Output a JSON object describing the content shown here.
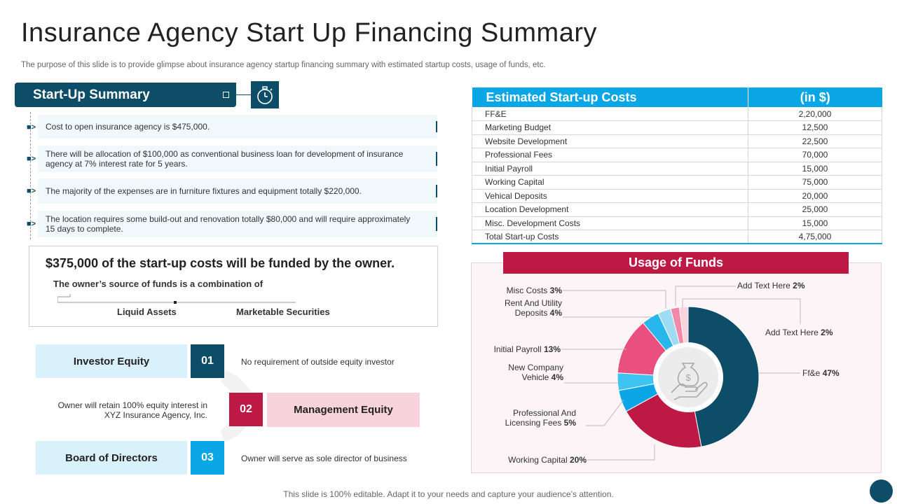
{
  "title": "Insurance Agency Start Up Financing Summary",
  "subtitle": "The purpose of this slide is to provide glimpse about insurance agency startup financing summary with estimated startup costs, usage of funds, etc.",
  "summary": {
    "header": "Start-Up Summary",
    "bullets": [
      "Cost to open insurance agency is $475,000.",
      "There will be allocation of $100,000 as conventional business loan for development of insurance agency at 7% interest rate for 5 years.",
      "The majority of the expenses are in furniture fixtures and equipment totally $220,000.",
      "The location requires some build-out and renovation totally $80,000 and will require approximately 15 days to complete."
    ]
  },
  "funding": {
    "headline": "$375,000 of the start-up costs will be funded by the owner.",
    "sub": "The owner’s source of funds is a combination of",
    "sources": [
      "Liquid Assets",
      "Marketable Securities"
    ]
  },
  "equity": [
    {
      "label": "Investor Equity",
      "num": "01",
      "desc": "No requirement of outside equity investor"
    },
    {
      "label": "Management Equity",
      "num": "02",
      "desc": "Owner will retain 100% equity interest in XYZ  Insurance Agency, Inc."
    },
    {
      "label": "Board of Directors",
      "num": "03",
      "desc": "Owner will serve as sole director of business"
    }
  ],
  "costs": {
    "header_item": "Estimated Start-up Costs",
    "header_amount": "(in $)",
    "rows": [
      {
        "item": "FF&E",
        "amount": "2,20,000"
      },
      {
        "item": "Marketing Budget",
        "amount": "12,500"
      },
      {
        "item": "Website Development",
        "amount": "22,500"
      },
      {
        "item": "Professional Fees",
        "amount": "70,000"
      },
      {
        "item": "Initial Payroll",
        "amount": "15,000"
      },
      {
        "item": "Working Capital",
        "amount": "75,000"
      },
      {
        "item": "Vehical Deposits",
        "amount": "20,000"
      },
      {
        "item": "Location Development",
        "amount": "25,000"
      },
      {
        "item": "Misc. Development Costs",
        "amount": "15,000"
      },
      {
        "item": "Total Start-up Costs",
        "amount": "4,75,000"
      }
    ]
  },
  "chart_data": {
    "type": "pie",
    "title": "Usage of Funds",
    "slices": [
      {
        "label": "Ff&e",
        "value": 47,
        "color": "#0e4d68"
      },
      {
        "label": "Working Capital",
        "value": 20,
        "color": "#be1845"
      },
      {
        "label": "Professional And Licensing Fees",
        "value": 5,
        "color": "#0aa6e6"
      },
      {
        "label": "New Company Vehicle",
        "value": 4,
        "color": "#3fc3f1"
      },
      {
        "label": "Initial Payroll",
        "value": 13,
        "color": "#e94f7f"
      },
      {
        "label": "Rent And Utility Deposits",
        "value": 4,
        "color": "#29b6ec"
      },
      {
        "label": "Misc Costs",
        "value": 3,
        "color": "#9fdbf3"
      },
      {
        "label": "Add Text Here",
        "value": 2,
        "color": "#f08aa8"
      },
      {
        "label": "Add Text Here",
        "value": 2,
        "color": "#f8d2dd"
      }
    ],
    "label_lines": [
      {
        "lines": [
          "Misc Costs"
        ],
        "pct": "3%"
      },
      {
        "lines": [
          "Add Text Here"
        ],
        "pct": "2%"
      },
      {
        "lines": [
          "Rent And Utility",
          "Deposits"
        ],
        "pct": "4%"
      },
      {
        "lines": [
          "Add Text Here"
        ],
        "pct": "2%"
      },
      {
        "lines": [
          "Initial Payroll"
        ],
        "pct": "13%"
      },
      {
        "lines": [
          "Ff&e"
        ],
        "pct": "47%"
      },
      {
        "lines": [
          "New Company",
          "Vehicle"
        ],
        "pct": "4%"
      },
      {
        "lines": [
          "Professional And",
          "Licensing Fees"
        ],
        "pct": "5%"
      },
      {
        "lines": [
          "Working Capital"
        ],
        "pct": "20%"
      }
    ]
  },
  "footer": "This slide is 100% editable. Adapt it to your needs and capture your audience’s attention."
}
